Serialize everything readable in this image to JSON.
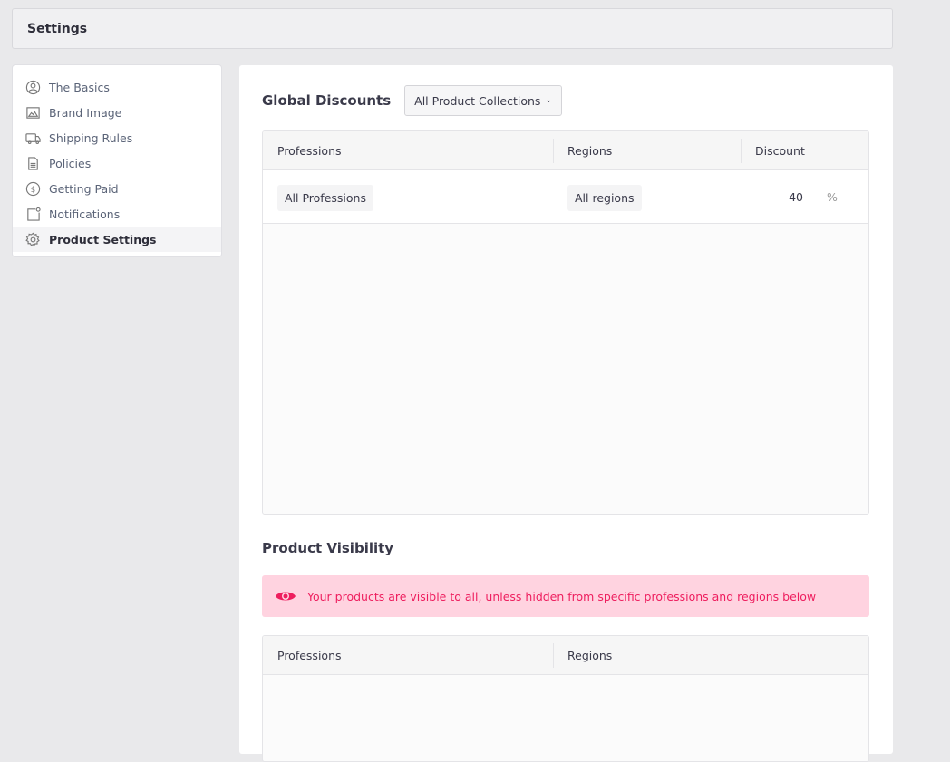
{
  "header": {
    "title": "Settings"
  },
  "sidebar": {
    "items": [
      {
        "label": "The Basics",
        "icon": "user-circle-icon"
      },
      {
        "label": "Brand Image",
        "icon": "image-icon"
      },
      {
        "label": "Shipping Rules",
        "icon": "truck-icon"
      },
      {
        "label": "Policies",
        "icon": "document-icon"
      },
      {
        "label": "Getting Paid",
        "icon": "dollar-circle-icon"
      },
      {
        "label": "Notifications",
        "icon": "notification-icon"
      },
      {
        "label": "Product Settings",
        "icon": "gear-icon",
        "active": true
      }
    ]
  },
  "discounts": {
    "title": "Global Discounts",
    "collection_select": "All Product Collections",
    "columns": [
      "Professions",
      "Regions",
      "Discount"
    ],
    "rows": [
      {
        "profession": "All Professions",
        "region": "All regions",
        "discount": "40",
        "unit": "%"
      }
    ]
  },
  "visibility": {
    "title": "Product Visibility",
    "alert": "Your products are visible to all, unless hidden from specific professions and regions below",
    "alert_color": "#ee1e5e",
    "columns": [
      "Professions",
      "Regions"
    ]
  }
}
